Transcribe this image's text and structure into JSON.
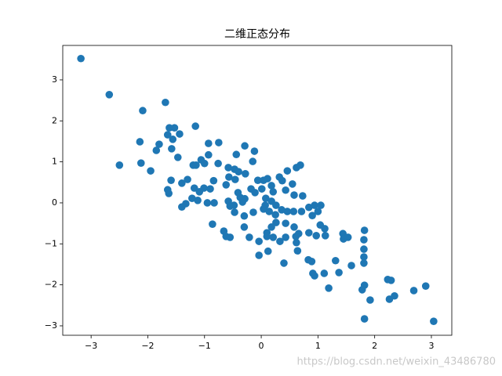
{
  "chart_data": {
    "type": "scatter",
    "title": "二维正态分布",
    "color": "#1f77b4",
    "x": [
      -3.18,
      -2.68,
      -2.5,
      -2.09,
      -2.14,
      -2.12,
      -1.95,
      -1.69,
      -1.8,
      -1.85,
      -1.62,
      -1.53,
      -1.65,
      -1.56,
      -1.44,
      -1.58,
      -1.47,
      -1.16,
      -1.59,
      -1.65,
      -1.63,
      -1.4,
      -1.3,
      -1.2,
      -1.15,
      -1.06,
      -1.0,
      -0.93,
      -0.93,
      -0.75,
      -0.76,
      -1.18,
      -1.09,
      -1.01,
      -0.9,
      -0.84,
      -0.62,
      -0.58,
      -0.47,
      -0.44,
      -0.29,
      -0.12,
      -0.15,
      -0.4,
      -0.28,
      -0.57,
      -0.46,
      -1.22,
      -1.33,
      -1.4,
      -1.12,
      -0.95,
      -0.83,
      -0.58,
      -0.55,
      -0.48,
      -0.37,
      -0.33,
      -0.29,
      -0.41,
      -0.18,
      -0.11,
      -0.3,
      -0.14,
      -0.47,
      -0.86,
      -0.66,
      -0.62,
      -0.55,
      -0.3,
      -0.06,
      0.04,
      0.18,
      0.11,
      0.01,
      0.21,
      0.32,
      0.37,
      0.46,
      0.62,
      0.69,
      0.55,
      0.58,
      0.73,
      0.43,
      0.08,
      0.07,
      0.18,
      0.26,
      0.04,
      0.14,
      0.25,
      0.36,
      0.46,
      0.57,
      0.71,
      0.84,
      0.94,
      1.05,
      1.0,
      0.9,
      1.04,
      0.84,
      0.66,
      0.58,
      0.43,
      0.26,
      0.18,
      0.1,
      0.1,
      0.21,
      0.33,
      0.12,
      -0.04,
      -0.04,
      -0.21,
      0.43,
      0.61,
      0.62,
      0.64,
      0.4,
      0.83,
      0.89,
      0.97,
      1.12,
      1.13,
      0.91,
      0.94,
      1.11,
      1.19,
      1.31,
      1.37,
      1.44,
      1.45,
      1.53,
      1.59,
      1.82,
      1.81,
      1.81,
      1.81,
      1.81,
      1.82,
      1.78,
      1.82,
      1.92,
      2.23,
      2.29,
      2.26,
      2.35,
      2.69,
      2.9,
      3.04
    ],
    "y": [
      3.52,
      2.64,
      0.92,
      2.25,
      1.49,
      0.97,
      0.78,
      2.45,
      1.43,
      1.28,
      1.83,
      1.83,
      1.66,
      1.55,
      1.68,
      1.32,
      1.11,
      1.87,
      0.55,
      0.32,
      0.23,
      0.48,
      0.57,
      0.92,
      0.92,
      1.05,
      0.96,
      1.45,
      1.17,
      1.47,
      0.96,
      0.36,
      0.27,
      0.36,
      0.34,
      0.54,
      0.44,
      0.86,
      0.82,
      1.18,
      1.39,
      1.26,
      1.01,
      0.76,
      0.71,
      0.63,
      0.57,
      0.11,
      -0.02,
      -0.1,
      0.06,
      0.0,
      0.0,
      0.04,
      -0.08,
      -0.06,
      0.13,
      0.02,
      0.1,
      0.25,
      0.34,
      0.25,
      -0.32,
      -0.23,
      -0.23,
      -0.52,
      -0.69,
      -0.82,
      -0.84,
      -0.59,
      0.55,
      0.55,
      0.42,
      0.59,
      0.34,
      0.27,
      0.63,
      0.54,
      0.78,
      0.86,
      0.92,
      0.46,
      0.19,
      0.17,
      0.31,
      0.11,
      -0.06,
      0.04,
      -0.06,
      -0.15,
      -0.21,
      -0.29,
      -0.17,
      -0.21,
      -0.21,
      -0.21,
      -0.11,
      -0.06,
      -0.06,
      -0.21,
      -0.31,
      -0.54,
      -0.73,
      -0.75,
      -0.59,
      -0.5,
      -0.48,
      -0.59,
      -0.73,
      -0.82,
      -0.84,
      -0.94,
      -1.18,
      -1.28,
      -0.94,
      -0.84,
      -0.84,
      -0.82,
      -0.97,
      -1.17,
      -1.47,
      -1.39,
      -1.43,
      -0.8,
      -0.63,
      -0.8,
      -1.72,
      -1.78,
      -1.72,
      -2.08,
      -1.41,
      -1.7,
      -0.75,
      -0.88,
      -0.84,
      -1.53,
      -0.67,
      -0.9,
      -1.13,
      -1.32,
      -1.47,
      -2.01,
      -2.12,
      -2.83,
      -2.37,
      -1.87,
      -1.89,
      -2.35,
      -2.27,
      -2.14,
      -2.03,
      -2.89
    ],
    "xlim": [
      -3.5,
      3.36
    ],
    "ylim": [
      -3.23,
      3.84
    ],
    "xticks": [
      {
        "value": -3,
        "label": "−3"
      },
      {
        "value": -2,
        "label": "−2"
      },
      {
        "value": -1,
        "label": "−1"
      },
      0,
      1,
      2,
      3
    ],
    "yticks": [
      {
        "value": -3,
        "label": "−3"
      },
      {
        "value": -2,
        "label": "−2"
      },
      {
        "value": -1,
        "label": "−1"
      },
      0,
      1,
      2,
      3
    ]
  },
  "watermark": "https://blog.csdn.net/weixin_43486780"
}
